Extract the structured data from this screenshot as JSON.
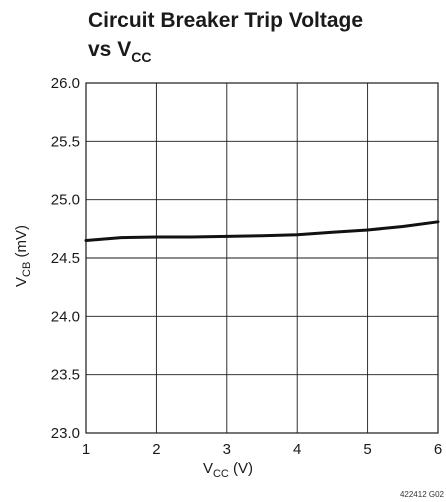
{
  "chart_data": {
    "type": "line",
    "title_line1": "Circuit Breaker Trip Voltage",
    "title_line2_main": "vs V",
    "title_line2_sub": "CC",
    "xlabel_main": "V",
    "xlabel_sub": "CC",
    "xlabel_unit": " (V)",
    "ylabel_main": "V",
    "ylabel_sub": "CB",
    "ylabel_unit": " (mV)",
    "xlim": [
      1,
      6
    ],
    "ylim": [
      23.0,
      26.0
    ],
    "x_ticks": [
      1,
      2,
      3,
      4,
      5,
      6
    ],
    "x_tick_labels": [
      "1",
      "2",
      "3",
      "4",
      "5",
      "6"
    ],
    "y_ticks": [
      23.0,
      23.5,
      24.0,
      24.5,
      25.0,
      25.5,
      26.0
    ],
    "y_tick_labels": [
      "23.0",
      "23.5",
      "24.0",
      "24.5",
      "25.0",
      "25.5",
      "26.0"
    ],
    "grid": true,
    "series": [
      {
        "x": [
          1.0,
          1.5,
          2.0,
          2.5,
          3.0,
          3.5,
          4.0,
          4.5,
          5.0,
          5.5,
          6.0
        ],
        "values": [
          24.65,
          24.675,
          24.68,
          24.68,
          24.685,
          24.69,
          24.7,
          24.72,
          24.74,
          24.77,
          24.81
        ]
      }
    ],
    "figure_id": "422412 G02"
  }
}
